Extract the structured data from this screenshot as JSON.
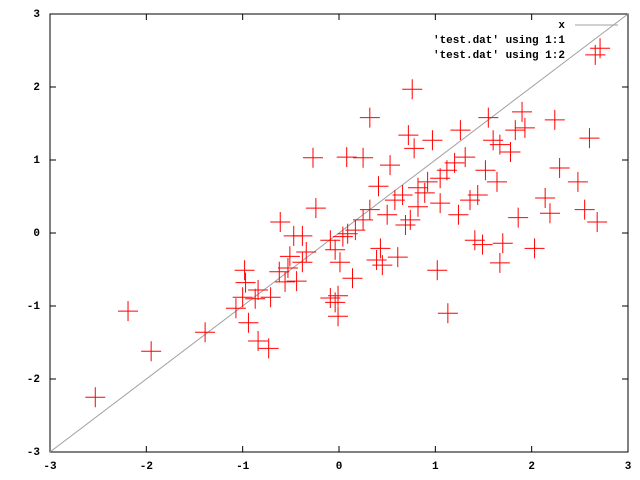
{
  "chart_data": {
    "type": "scatter",
    "xlim": [
      -3,
      3
    ],
    "ylim": [
      -3,
      3
    ],
    "xticks": [
      -3,
      -2,
      -1,
      0,
      1,
      2,
      3
    ],
    "yticks": [
      -3,
      -2,
      -1,
      0,
      1,
      2,
      3
    ],
    "legend": "top right",
    "series": [
      {
        "name": "x",
        "color": "#a0a0a0",
        "style": "line",
        "x": [
          -3,
          3
        ],
        "values": [
          -3,
          3
        ]
      },
      {
        "name": "'test.dat' using 1:1",
        "color": "#ff0000",
        "style": "points",
        "x": [],
        "values": []
      },
      {
        "name": "'test.dat' using 1:2",
        "color": "#ff0000",
        "style": "points",
        "x": [
          -2.53,
          -2.19,
          -1.95,
          -1.39,
          -0.98,
          -0.97,
          -1.0,
          -0.94,
          -1.07,
          -0.87,
          -0.84,
          -0.73,
          -0.71,
          -0.61,
          -0.62,
          -0.56,
          -0.51,
          -0.53,
          -0.44,
          -0.38,
          -0.34,
          -0.47,
          -0.24,
          -0.27,
          -0.09,
          -0.04,
          -0.01,
          -0.01,
          -0.09,
          -0.04,
          0.04,
          0.09,
          0.01,
          0.14,
          0.08,
          0.25,
          0.25,
          0.32,
          0.32,
          0.39,
          0.45,
          0.41,
          0.53,
          0.5,
          0.58,
          0.61,
          0.66,
          0.72,
          0.76,
          0.78,
          0.74,
          0.69,
          0.82,
          0.89,
          0.92,
          0.97,
          1.02,
          1.05,
          1.12,
          1.13,
          1.2,
          1.26,
          1.24,
          1.31,
          1.36,
          1.44,
          1.52,
          1.55,
          1.6,
          1.64,
          1.67,
          1.7,
          1.67,
          1.78,
          1.83,
          1.86,
          1.9,
          1.93,
          2.03,
          2.14,
          2.19,
          2.24,
          2.29,
          2.48,
          2.55,
          2.6,
          2.66,
          2.71,
          2.68,
          0.82,
          1.05,
          1.41,
          1.49,
          0.43,
          0.17,
          -0.38,
          -0.84
        ],
        "values": [
          -2.25,
          -1.07,
          -1.62,
          -1.36,
          -0.51,
          -0.68,
          -0.88,
          -1.23,
          -1.03,
          -0.9,
          -1.48,
          -1.58,
          -0.88,
          0.15,
          -0.53,
          -0.67,
          -0.32,
          -0.48,
          -0.66,
          -0.4,
          -0.26,
          -0.04,
          0.34,
          1.03,
          -0.89,
          -0.95,
          -1.14,
          -0.86,
          -0.1,
          -0.23,
          -0.05,
          -0.01,
          -0.4,
          -0.62,
          1.04,
          1.03,
          0.18,
          0.32,
          1.58,
          -0.37,
          -0.44,
          0.64,
          0.93,
          0.25,
          0.45,
          -0.33,
          0.52,
          1.34,
          1.97,
          1.16,
          0.18,
          0.11,
          0.62,
          0.55,
          0.7,
          1.27,
          -0.51,
          0.75,
          0.86,
          -1.1,
          0.96,
          1.41,
          0.25,
          1.04,
          0.45,
          0.52,
          0.86,
          1.58,
          1.27,
          0.7,
          -0.41,
          -0.14,
          1.21,
          1.11,
          1.41,
          0.21,
          1.66,
          1.44,
          -0.21,
          0.48,
          0.27,
          1.55,
          0.89,
          0.7,
          0.32,
          1.3,
          2.44,
          2.53,
          0.15,
          0.36,
          0.41,
          -0.1,
          -0.16,
          -0.21,
          0.04,
          -0.04,
          -0.78
        ]
      }
    ]
  }
}
